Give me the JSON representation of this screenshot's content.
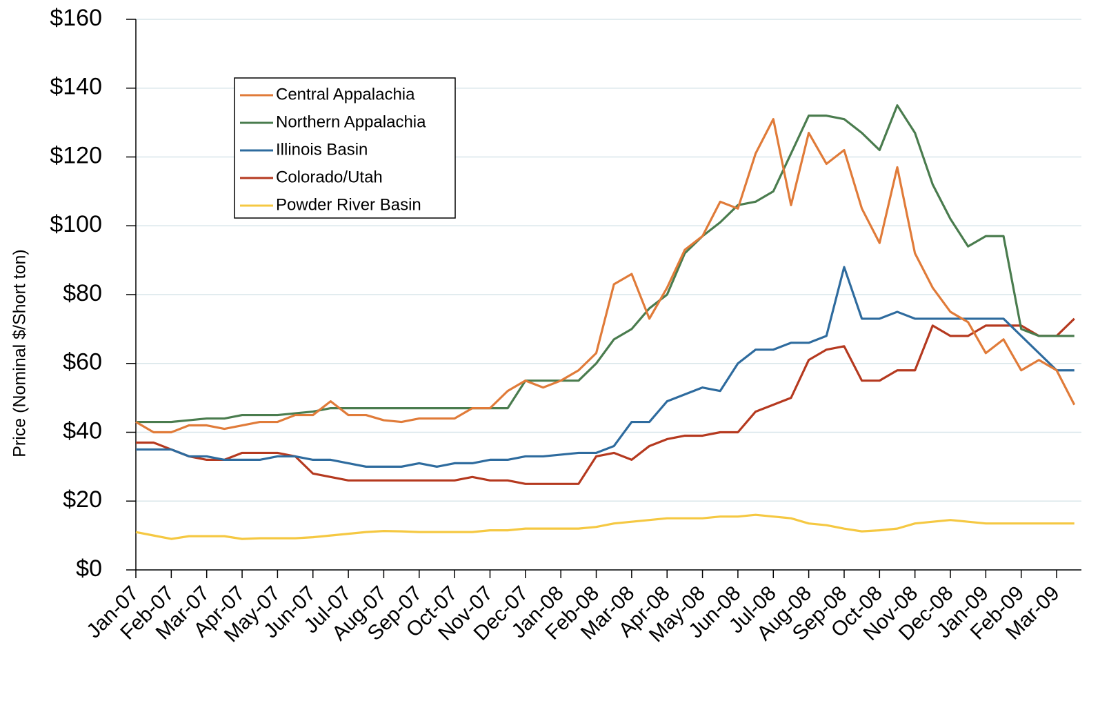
{
  "chart_data": {
    "type": "line",
    "y_label": "Price (Nominal $/Short ton)",
    "x": [
      0,
      0.5,
      1,
      1.5,
      2,
      2.5,
      3,
      3.5,
      4,
      4.5,
      5,
      5.5,
      6,
      6.5,
      7,
      7.5,
      8,
      8.5,
      9,
      9.5,
      10,
      10.5,
      11,
      11.5,
      12,
      12.5,
      13,
      13.5,
      14,
      14.5,
      15,
      15.5,
      16,
      16.5,
      17,
      17.5,
      18,
      18.5,
      19,
      19.5,
      20,
      20.5,
      21,
      21.5,
      22,
      22.5,
      23,
      23.5,
      24,
      24.5,
      25,
      25.5,
      26,
      26.5
    ],
    "xlim": [
      0,
      26.7
    ],
    "xticks": [
      {
        "value": 0,
        "label": "Jan-07"
      },
      {
        "value": 1,
        "label": "Feb-07"
      },
      {
        "value": 2,
        "label": "Mar-07"
      },
      {
        "value": 3,
        "label": "Apr-07"
      },
      {
        "value": 4,
        "label": "May-07"
      },
      {
        "value": 5,
        "label": "Jun-07"
      },
      {
        "value": 6,
        "label": "Jul-07"
      },
      {
        "value": 7,
        "label": "Aug-07"
      },
      {
        "value": 8,
        "label": "Sep-07"
      },
      {
        "value": 9,
        "label": "Oct-07"
      },
      {
        "value": 10,
        "label": "Nov-07"
      },
      {
        "value": 11,
        "label": "Dec-07"
      },
      {
        "value": 12,
        "label": "Jan-08"
      },
      {
        "value": 13,
        "label": "Feb-08"
      },
      {
        "value": 14,
        "label": "Mar-08"
      },
      {
        "value": 15,
        "label": "Apr-08"
      },
      {
        "value": 16,
        "label": "May-08"
      },
      {
        "value": 17,
        "label": "Jun-08"
      },
      {
        "value": 18,
        "label": "Jul-08"
      },
      {
        "value": 19,
        "label": "Aug-08"
      },
      {
        "value": 20,
        "label": "Sep-08"
      },
      {
        "value": 21,
        "label": "Oct-08"
      },
      {
        "value": 22,
        "label": "Nov-08"
      },
      {
        "value": 23,
        "label": "Dec-08"
      },
      {
        "value": 24,
        "label": "Jan-09"
      },
      {
        "value": 25,
        "label": "Feb-09"
      },
      {
        "value": 26,
        "label": "Mar-09"
      }
    ],
    "ylim": [
      0,
      160
    ],
    "yticks": [
      {
        "value": 0,
        "label": "$0"
      },
      {
        "value": 20,
        "label": "$20"
      },
      {
        "value": 40,
        "label": "$40"
      },
      {
        "value": 60,
        "label": "$60"
      },
      {
        "value": 80,
        "label": "$80"
      },
      {
        "value": 100,
        "label": "$100"
      },
      {
        "value": 120,
        "label": "$120"
      },
      {
        "value": 140,
        "label": "$140"
      },
      {
        "value": 160,
        "label": "$160"
      }
    ],
    "grid": true,
    "legend_position": "upper-left",
    "series": [
      {
        "name": "Central Appalachia",
        "color": "#e07b39",
        "values": [
          43,
          40,
          40,
          42,
          42,
          41,
          42,
          43,
          43,
          45,
          45,
          49,
          45,
          45,
          43.5,
          43,
          44,
          44,
          44,
          47,
          47,
          52,
          55,
          53,
          55,
          58,
          63,
          83,
          86,
          73,
          82,
          93,
          97,
          107,
          105,
          121,
          131,
          106,
          127,
          118,
          122,
          105,
          95,
          117,
          92,
          82,
          75,
          72,
          63,
          67,
          58,
          61,
          58,
          48
        ]
      },
      {
        "name": "Northern Appalachia",
        "color": "#4a7c4e",
        "values": [
          43,
          43,
          43,
          43.5,
          44,
          44,
          45,
          45,
          45,
          45.5,
          46,
          47,
          47,
          47,
          47,
          47,
          47,
          47,
          47,
          47,
          47,
          47,
          55,
          55,
          55,
          55,
          60,
          67,
          70,
          76,
          80,
          92,
          97,
          101,
          106,
          107,
          110,
          121,
          132,
          132,
          131,
          127,
          122,
          135,
          127,
          112,
          102,
          94,
          97,
          97,
          70,
          68,
          68,
          68
        ]
      },
      {
        "name": "Illinois Basin",
        "color": "#2e6b9e",
        "values": [
          35,
          35,
          35,
          33,
          33,
          32,
          32,
          32,
          33,
          33,
          32,
          32,
          31,
          30,
          30,
          30,
          31,
          30,
          31,
          31,
          32,
          32,
          33,
          33,
          33.5,
          34,
          34,
          36,
          43,
          43,
          49,
          51,
          53,
          52,
          60,
          64,
          64,
          66,
          66,
          68,
          88,
          73,
          73,
          75,
          73,
          73,
          73,
          73,
          73,
          73,
          68,
          63,
          58,
          58
        ]
      },
      {
        "name": "Colorado/Utah",
        "color": "#b5391f",
        "values": [
          37,
          37,
          35,
          33,
          32,
          32,
          34,
          34,
          34,
          33,
          28,
          27,
          26,
          26,
          26,
          26,
          26,
          26,
          26,
          27,
          26,
          26,
          25,
          25,
          25,
          25,
          33,
          34,
          32,
          36,
          38,
          39,
          39,
          40,
          40,
          46,
          48,
          50,
          61,
          64,
          65,
          55,
          55,
          58,
          58,
          71,
          68,
          68,
          71,
          71,
          71,
          68,
          68,
          73
        ]
      },
      {
        "name": "Powder River Basin",
        "color": "#f5c842",
        "values": [
          11,
          10,
          9,
          9.8,
          9.8,
          9.8,
          9,
          9.2,
          9.2,
          9.2,
          9.5,
          10,
          10.5,
          11,
          11.3,
          11.2,
          11,
          11,
          11,
          11,
          11.5,
          11.5,
          12,
          12,
          12,
          12,
          12.5,
          13.5,
          14,
          14.5,
          15,
          15,
          15,
          15.5,
          15.5,
          16,
          15.5,
          15,
          13.5,
          13,
          12,
          11.2,
          11.5,
          12,
          13.5,
          14,
          14.5,
          14,
          13.5,
          13.5,
          13.5,
          13.5,
          13.5,
          13.5
        ]
      }
    ]
  }
}
